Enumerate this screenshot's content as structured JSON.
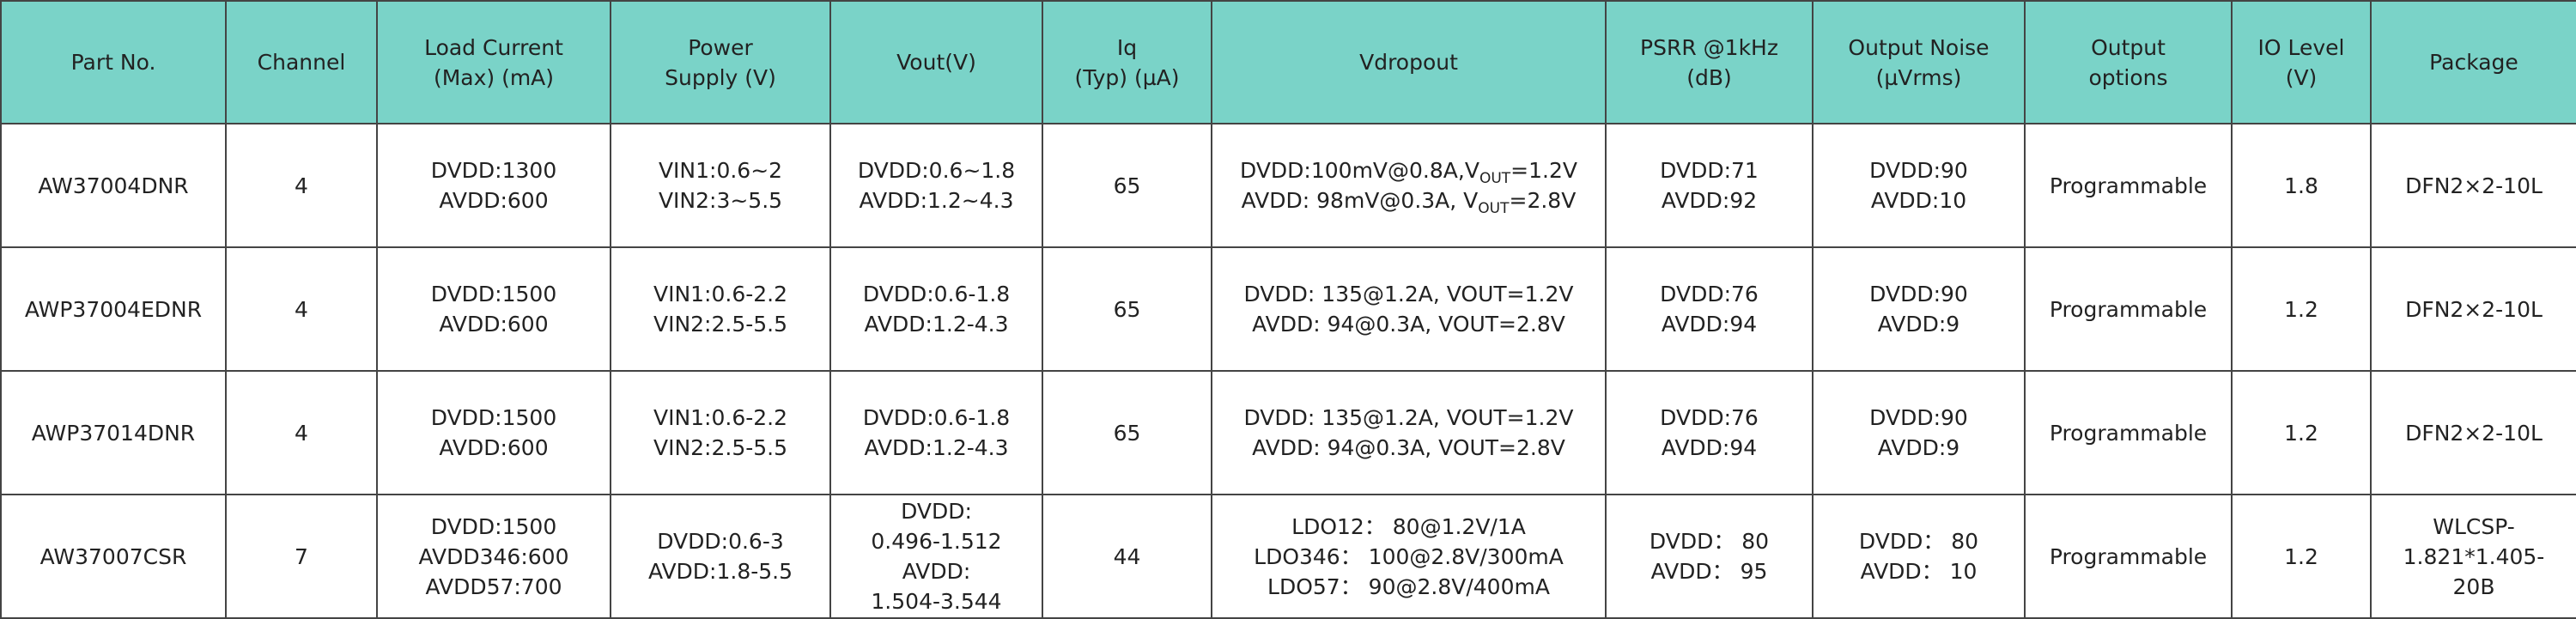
{
  "table": {
    "headers": [
      [
        "Part No."
      ],
      [
        "Channel"
      ],
      [
        "Load Current",
        "(Max) (mA)"
      ],
      [
        "Power",
        "Supply (V)"
      ],
      [
        "Vout(V)"
      ],
      [
        "Iq",
        "(Typ) (µA)"
      ],
      [
        "Vdropout"
      ],
      [
        "PSRR @1kHz",
        "(dB)"
      ],
      [
        "Output Noise",
        "(µVrms)"
      ],
      [
        "Output",
        "options"
      ],
      [
        "IO Level",
        "(V)"
      ],
      [
        "Package"
      ]
    ],
    "rows": [
      [
        [
          "AW37004DNR"
        ],
        [
          "4"
        ],
        [
          "DVDD:1300",
          "AVDD:600"
        ],
        [
          "VIN1:0.6~2",
          "VIN2:3~5.5"
        ],
        [
          "DVDD:0.6~1.8",
          "AVDD:1.2~4.3"
        ],
        [
          "65"
        ],
        [
          [
            "DVDD:100mV@0.8A,V",
            {
              "sub": "OUT"
            },
            "=1.2V"
          ],
          [
            "AVDD: 98mV@0.3A, V",
            {
              "sub": "OUT"
            },
            "=2.8V"
          ]
        ],
        [
          "DVDD:71",
          "AVDD:92"
        ],
        [
          "DVDD:90",
          "AVDD:10"
        ],
        [
          "Programmable"
        ],
        [
          "1.8"
        ],
        [
          "DFN2×2-10L"
        ]
      ],
      [
        [
          "AWP37004EDNR"
        ],
        [
          "4"
        ],
        [
          "DVDD:1500",
          "AVDD:600"
        ],
        [
          "VIN1:0.6-2.2",
          "VIN2:2.5-5.5"
        ],
        [
          "DVDD:0.6-1.8",
          "AVDD:1.2-4.3"
        ],
        [
          "65"
        ],
        [
          "DVDD: 135@1.2A, VOUT=1.2V",
          "AVDD: 94@0.3A, VOUT=2.8V"
        ],
        [
          "DVDD:76",
          "AVDD:94"
        ],
        [
          "DVDD:90",
          "AVDD:9"
        ],
        [
          "Programmable"
        ],
        [
          "1.2"
        ],
        [
          "DFN2×2-10L"
        ]
      ],
      [
        [
          "AWP37014DNR"
        ],
        [
          "4"
        ],
        [
          "DVDD:1500",
          "AVDD:600"
        ],
        [
          "VIN1:0.6-2.2",
          "VIN2:2.5-5.5"
        ],
        [
          "DVDD:0.6-1.8",
          "AVDD:1.2-4.3"
        ],
        [
          "65"
        ],
        [
          "DVDD: 135@1.2A, VOUT=1.2V",
          "AVDD: 94@0.3A, VOUT=2.8V"
        ],
        [
          "DVDD:76",
          "AVDD:94"
        ],
        [
          "DVDD:90",
          "AVDD:9"
        ],
        [
          "Programmable"
        ],
        [
          "1.2"
        ],
        [
          "DFN2×2-10L"
        ]
      ],
      [
        [
          "AW37007CSR"
        ],
        [
          "7"
        ],
        [
          "DVDD:1500",
          "AVDD346:600",
          "AVDD57:700"
        ],
        [
          "DVDD:0.6-3",
          "AVDD:1.8-5.5"
        ],
        [
          "DVDD:",
          "0.496-1.512",
          "AVDD:",
          "1.504-3.544"
        ],
        [
          "44"
        ],
        [
          "LDO12： 80@1.2V/1A",
          "LDO346： 100@2.8V/300mA",
          "LDO57： 90@2.8V/400mA"
        ],
        [
          "DVDD： 80",
          "AVDD： 95"
        ],
        [
          "DVDD： 80",
          "AVDD： 10"
        ],
        [
          "Programmable"
        ],
        [
          "1.2"
        ],
        [
          "WLCSP-",
          "1.821*1.405-",
          "20B"
        ]
      ]
    ]
  }
}
